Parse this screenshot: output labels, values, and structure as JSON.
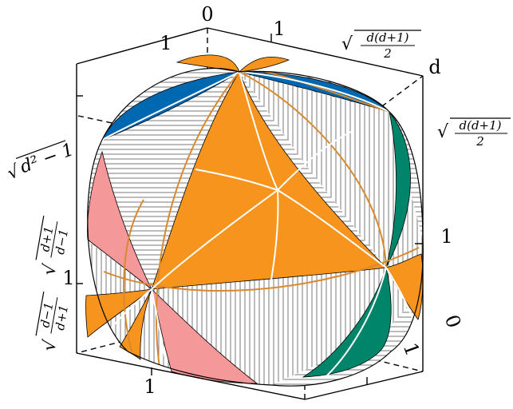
{
  "colors": {
    "orange": "#F7941D",
    "blue": "#0067B1",
    "green": "#00856A",
    "pink": "#F4989A",
    "hatch": "#7a7a7a",
    "gold_line": "#D9892C",
    "white_line": "#ffffff",
    "ink": "#000000"
  },
  "labels": {
    "top_zero": "0",
    "top_one": "1",
    "top_left_one": "1",
    "corner_d": "d",
    "right_one": "1",
    "bottom_one": "1",
    "bottom_right_zero": "0",
    "bottom_right_one": "1",
    "left_one": "1",
    "top_right_sqrt": {
      "radical": "√",
      "numerator": "d(d+1)",
      "denominator": "2"
    },
    "right_sqrt": {
      "radical": "√",
      "numerator": "d(d+1)",
      "denominator": "2"
    },
    "left_sqrt_dd": {
      "radical": "√",
      "expression": "d² − 1"
    },
    "left_sqrt_upper": {
      "radical": "√",
      "numerator": "d+1",
      "denominator": "d−1"
    },
    "left_sqrt_lower": {
      "radical": "√",
      "numerator": "d−1",
      "denominator": "d+1"
    }
  }
}
